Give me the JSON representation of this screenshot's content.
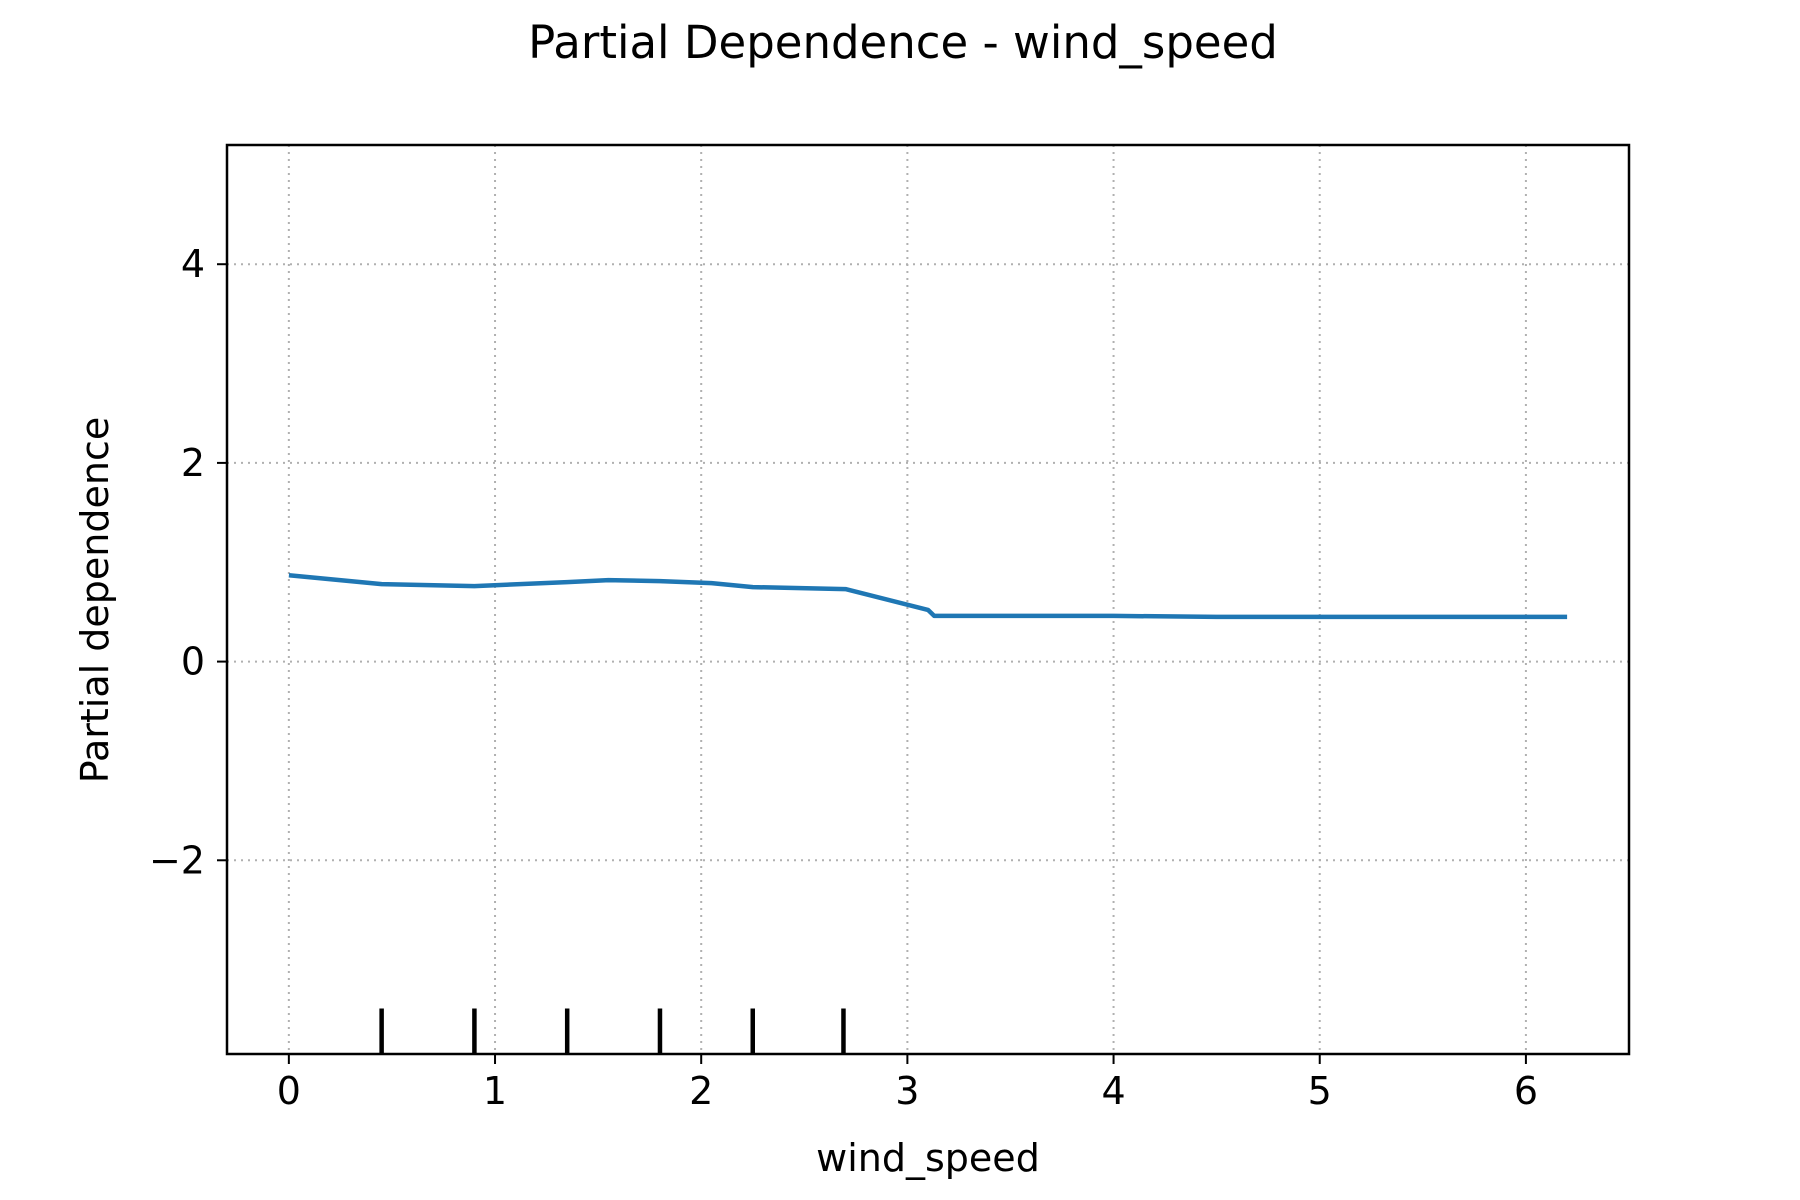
{
  "chart_data": {
    "type": "line",
    "title": "Partial Dependence - wind_speed",
    "xlabel": "wind_speed",
    "ylabel": "Partial dependence",
    "xlim": [
      -0.3,
      6.5
    ],
    "ylim": [
      -3.95,
      5.2
    ],
    "xticks": [
      0,
      1,
      2,
      3,
      4,
      5,
      6
    ],
    "xtick_labels": [
      "0",
      "1",
      "2",
      "3",
      "4",
      "5",
      "6"
    ],
    "yticks": [
      -2,
      0,
      2,
      4
    ],
    "ytick_labels": [
      "−2",
      "0",
      "2",
      "4"
    ],
    "grid": true,
    "legend": "none",
    "series": [
      {
        "color": "#1f77b4",
        "x": [
          0.0,
          0.45,
          0.9,
          1.35,
          1.55,
          1.8,
          2.05,
          2.25,
          2.7,
          3.1,
          3.13,
          3.5,
          4.0,
          4.5,
          5.0,
          5.5,
          6.2
        ],
        "y": [
          0.87,
          0.78,
          0.76,
          0.8,
          0.82,
          0.81,
          0.79,
          0.75,
          0.73,
          0.52,
          0.46,
          0.46,
          0.46,
          0.45,
          0.45,
          0.45,
          0.45
        ]
      }
    ],
    "rug_ticks": [
      0.45,
      0.9,
      1.35,
      1.8,
      2.25,
      2.69
    ],
    "rug_color": "#000000"
  }
}
